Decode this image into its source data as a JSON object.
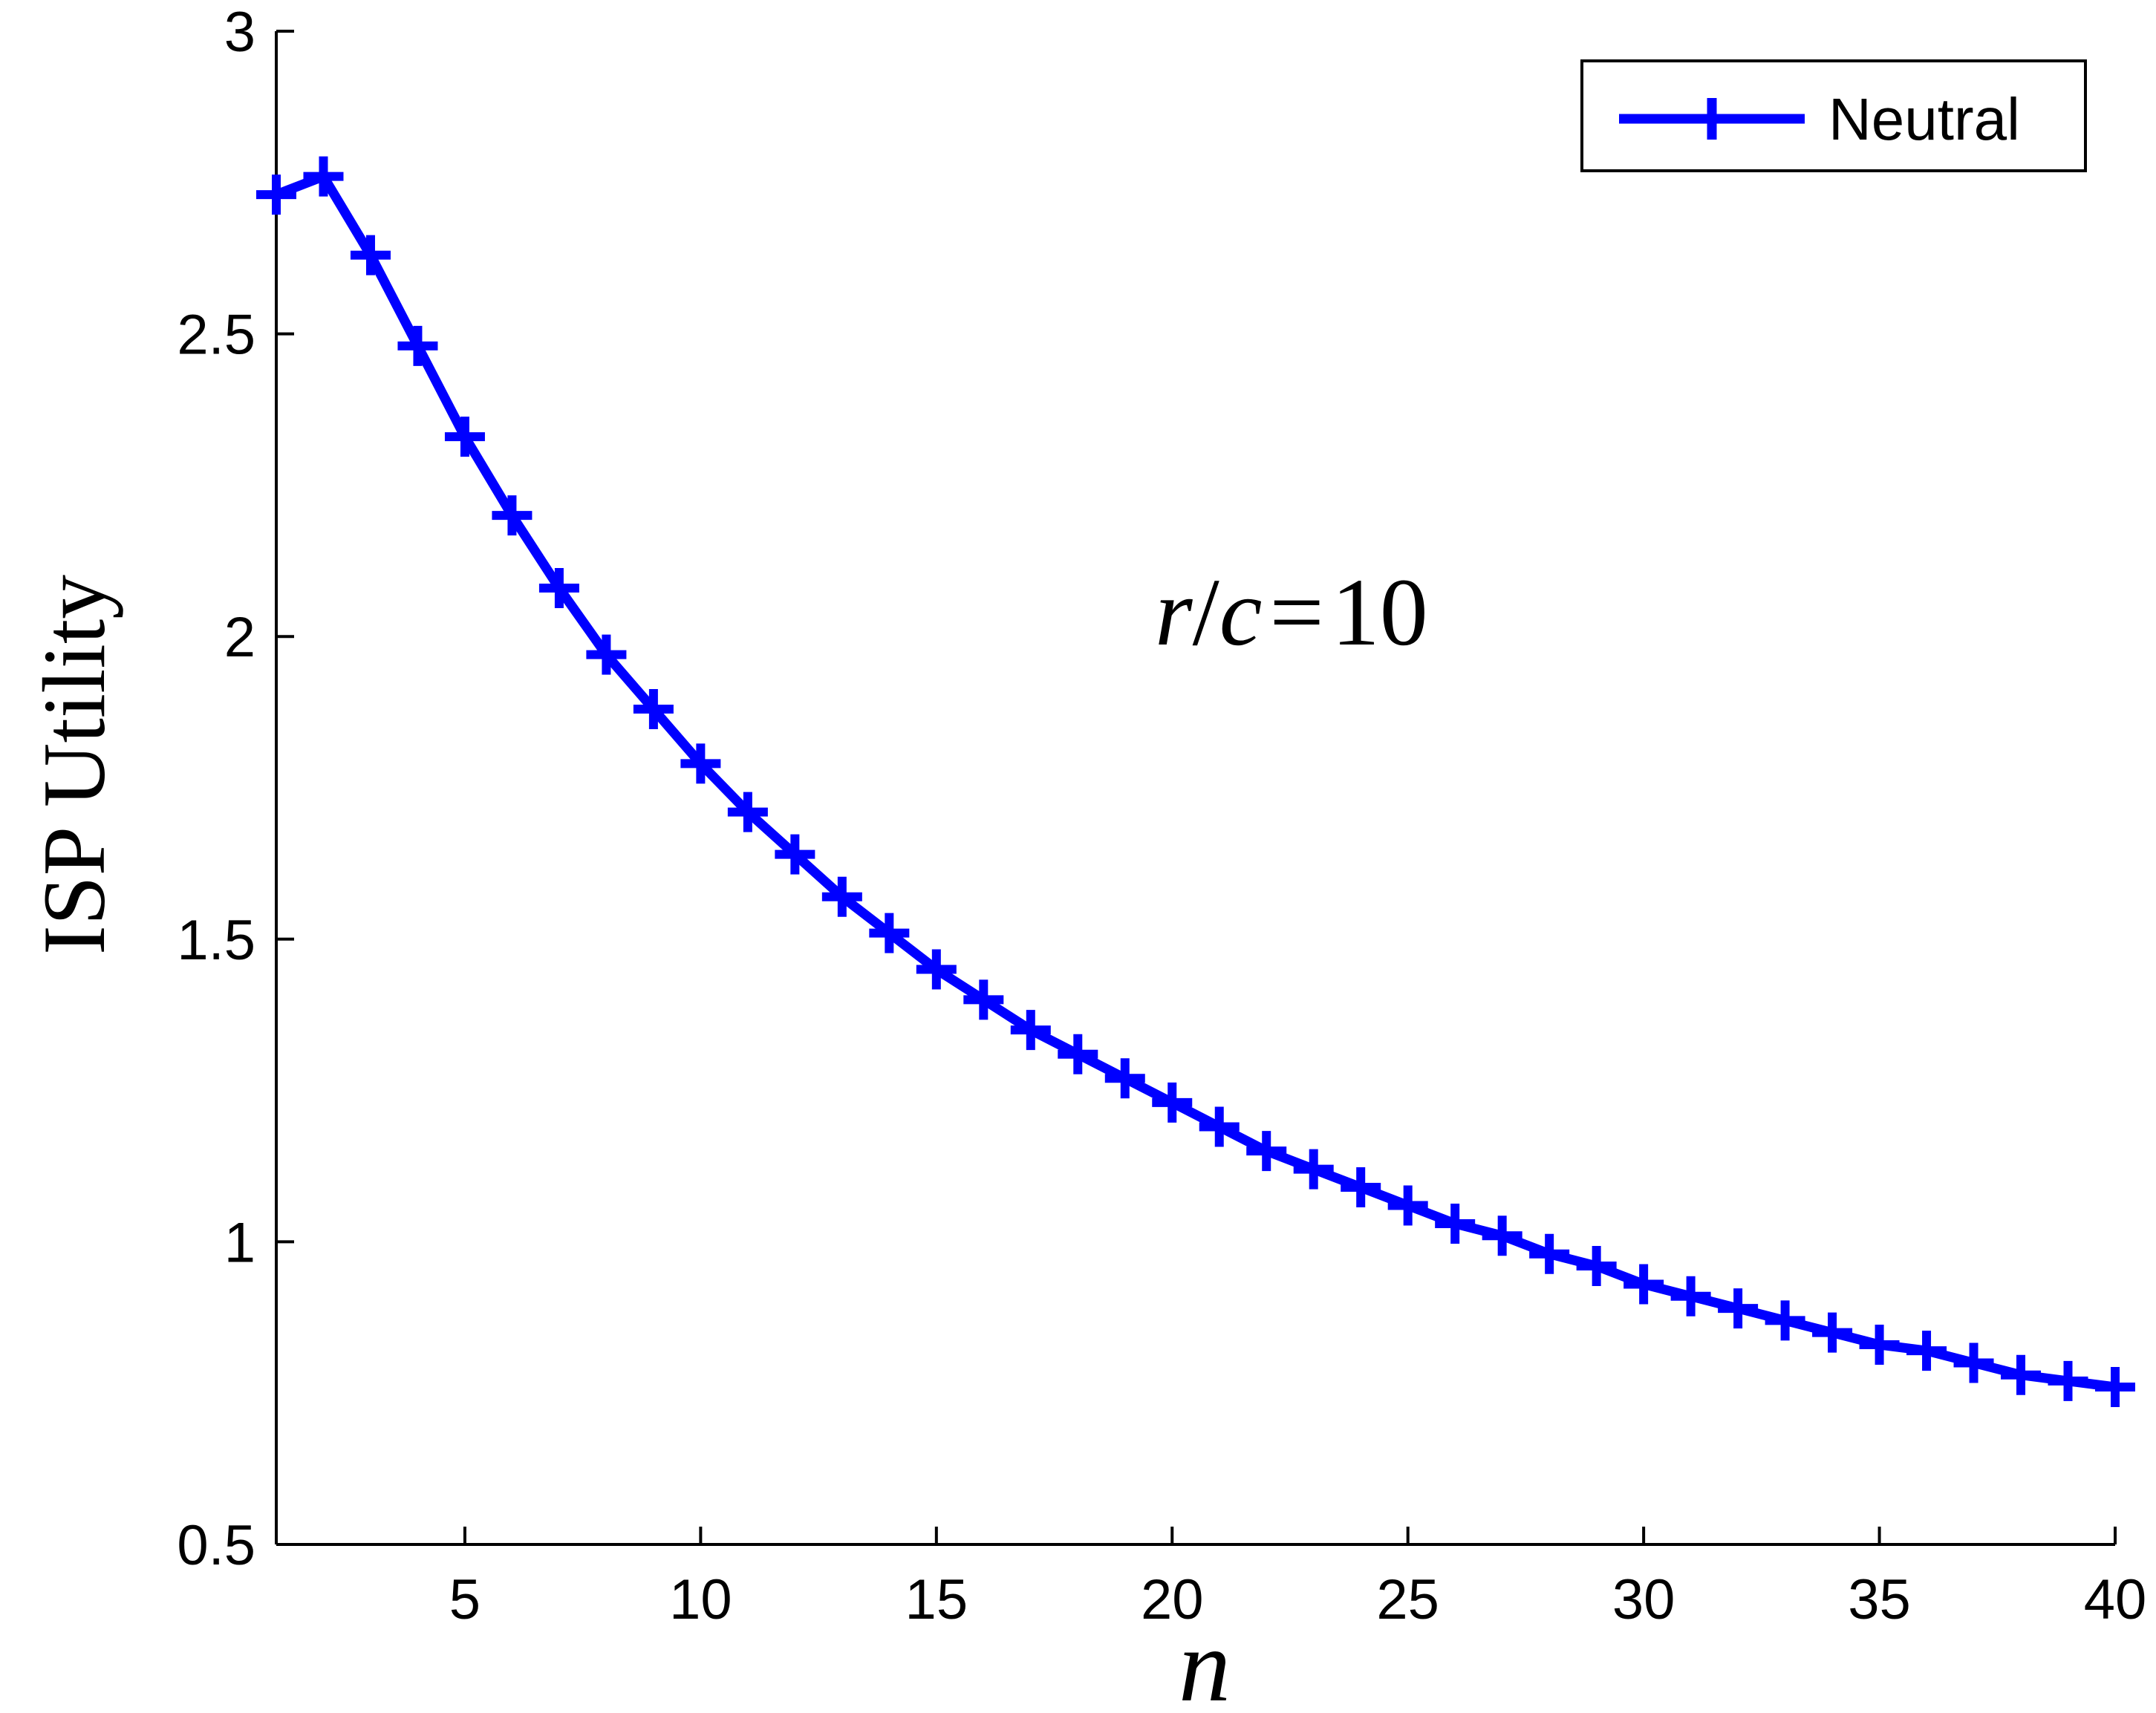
{
  "chart_data": {
    "type": "line",
    "title": "",
    "xlabel": "n",
    "ylabel": "ISP Utility",
    "xlim": [
      1,
      40
    ],
    "ylim": [
      0.5,
      3
    ],
    "xticks": [
      5,
      10,
      15,
      20,
      25,
      30,
      35,
      40
    ],
    "yticks": [
      0.5,
      1,
      1.5,
      2,
      2.5,
      3
    ],
    "grid": false,
    "legend_position": "top-right",
    "annotation": {
      "text": "r/c = 10",
      "r": "r",
      "slash": "/",
      "c": "c",
      "eq": "=",
      "value": "10"
    },
    "series": [
      {
        "name": "Neutral",
        "color": "#0000ff",
        "marker": "plus",
        "x": [
          1,
          2,
          3,
          4,
          5,
          6,
          7,
          8,
          9,
          10,
          11,
          12,
          13,
          14,
          15,
          16,
          17,
          18,
          19,
          20,
          21,
          22,
          23,
          24,
          25,
          26,
          27,
          28,
          29,
          30,
          31,
          32,
          33,
          34,
          35,
          36,
          37,
          38,
          39,
          40
        ],
        "values": [
          2.73,
          2.76,
          2.63,
          2.48,
          2.33,
          2.2,
          2.08,
          1.97,
          1.88,
          1.79,
          1.71,
          1.64,
          1.57,
          1.51,
          1.45,
          1.4,
          1.35,
          1.31,
          1.27,
          1.23,
          1.19,
          1.15,
          1.12,
          1.09,
          1.06,
          1.03,
          1.01,
          0.98,
          0.96,
          0.93,
          0.91,
          0.89,
          0.87,
          0.85,
          0.83,
          0.82,
          0.8,
          0.78,
          0.77,
          0.76
        ]
      }
    ]
  }
}
